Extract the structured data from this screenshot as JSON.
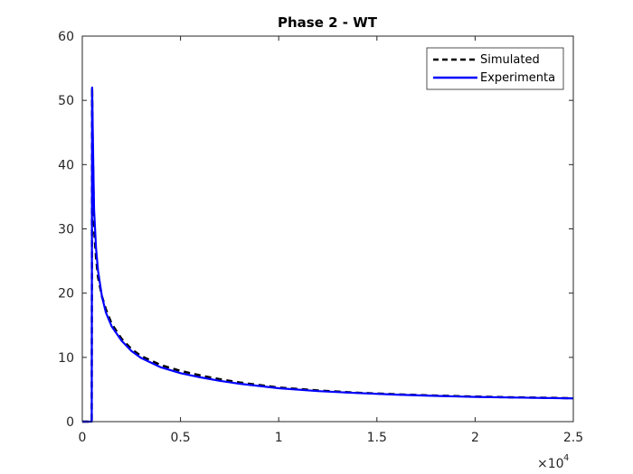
{
  "chart_data": {
    "type": "line",
    "title": "Phase 2 - WT",
    "xlabel": "",
    "ylabel": "",
    "xlim": [
      0,
      25000
    ],
    "ylim": [
      0,
      60
    ],
    "x_ticks": [
      0,
      5000,
      10000,
      15000,
      20000,
      25000
    ],
    "x_tick_labels": [
      "0",
      "0.5",
      "1",
      "1.5",
      "2",
      "2.5"
    ],
    "x_exponent": {
      "base": "×10",
      "power": "4"
    },
    "y_ticks": [
      0,
      10,
      20,
      30,
      40,
      50,
      60
    ],
    "y_tick_labels": [
      "0",
      "10",
      "20",
      "30",
      "40",
      "50",
      "60"
    ],
    "grid": false,
    "legend_position": "top-right",
    "series": [
      {
        "name": "Simulated",
        "color": "#000000",
        "style": "dashed",
        "x": [
          0,
          480,
          500,
          520,
          600,
          700,
          800,
          1000,
          1200,
          1500,
          2000,
          2500,
          3000,
          4000,
          5000,
          6000,
          7000,
          8000,
          10000,
          12000,
          14000,
          16000,
          18000,
          20000,
          22000,
          25000
        ],
        "y": [
          0,
          0,
          52,
          45,
          30,
          25.5,
          22.5,
          19.5,
          17.5,
          15.2,
          12.9,
          11.3,
          10.2,
          8.8,
          7.9,
          7.2,
          6.6,
          6.1,
          5.3,
          4.85,
          4.5,
          4.25,
          4.05,
          3.9,
          3.78,
          3.65
        ]
      },
      {
        "name": "Experimenta",
        "color": "#0000ff",
        "style": "solid",
        "x": [
          0,
          480,
          500,
          520,
          560,
          600,
          700,
          800,
          1000,
          1200,
          1500,
          2000,
          2500,
          3000,
          4000,
          5000,
          6000,
          7000,
          8000,
          10000,
          12000,
          14000,
          16000,
          18000,
          20000,
          22000,
          25000
        ],
        "y": [
          0,
          0,
          52,
          48,
          40,
          33,
          27,
          23.5,
          19.5,
          17,
          14.8,
          12.6,
          11.0,
          9.9,
          8.45,
          7.55,
          6.9,
          6.35,
          5.9,
          5.2,
          4.75,
          4.45,
          4.2,
          4.0,
          3.85,
          3.75,
          3.62
        ]
      }
    ]
  }
}
